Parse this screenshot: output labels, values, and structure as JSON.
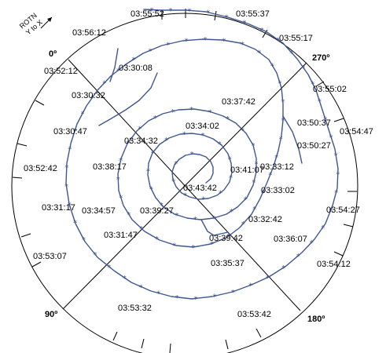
{
  "rotation_label": {
    "line1": "ROTN",
    "line2": "Y to X"
  },
  "angles": [
    {
      "text": "0º",
      "deg": 0
    },
    {
      "text": "270º",
      "deg": 270
    },
    {
      "text": "90º",
      "deg": 90
    },
    {
      "text": "180º",
      "deg": 180
    }
  ],
  "timestamps": [
    "03:55:52",
    "03:55:37",
    "03:56:12",
    "03:55:17",
    "03:52:12",
    "03:30:08",
    "03:55:02",
    "03:30:32",
    "03:37:42",
    "03:50:37",
    "03:54:47",
    "03:34:02",
    "03:30:47",
    "03:50:27",
    "03:34:32",
    "03:33:12",
    "03:52:42",
    "03:38:17",
    "03:41:07",
    "03:43:42",
    "03:33:02",
    "03:31:17",
    "03:54:27",
    "03:34:57",
    "03:39:27",
    "03:32:42",
    "03:31:47",
    "03:39:42",
    "03:36:07",
    "03:53:07",
    "03:35:37",
    "03:54:12",
    "03:53:32",
    "03:53:42"
  ],
  "colors": {
    "track": "#3f5690",
    "frame": "#000000"
  },
  "marker": "*"
}
